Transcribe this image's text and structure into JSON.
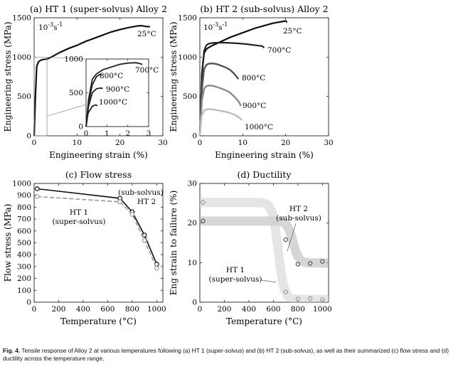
{
  "caption": {
    "label": "Fig. 4.",
    "text": "Tensile response of Alloy 2 at various temperatures following (a) HT 1 (super-solvus) and (b) HT 2 (sub-solvus), as well as their summarized (c) flow stress and (d) ductility across the temperature range."
  },
  "chart_data": [
    {
      "panel": "a",
      "type": "line",
      "title": "(a) HT 1 (super-solvus) Alloy 2",
      "xlabel": "Engineering strain (%)",
      "ylabel": "Engineering stress (MPa)",
      "xlim": [
        0,
        30
      ],
      "ylim": [
        0,
        1500
      ],
      "xticks": [
        0,
        10,
        20,
        30
      ],
      "yticks": [
        0,
        500,
        1000,
        1500
      ],
      "strain_rate_label": "10-3s-1",
      "series": [
        {
          "name": "25°C",
          "points": [
            [
              0,
              0
            ],
            [
              0.3,
              500
            ],
            [
              0.6,
              880
            ],
            [
              1,
              940
            ],
            [
              1.5,
              960
            ],
            [
              2,
              970
            ],
            [
              3,
              975
            ],
            [
              4,
              1000
            ],
            [
              6,
              1060
            ],
            [
              8,
              1110
            ],
            [
              10,
              1150
            ],
            [
              12,
              1200
            ],
            [
              14,
              1240
            ],
            [
              16,
              1280
            ],
            [
              18,
              1320
            ],
            [
              20,
              1350
            ],
            [
              22,
              1375
            ],
            [
              24,
              1395
            ],
            [
              25,
              1400
            ],
            [
              26,
              1390
            ],
            [
              27,
              1385
            ]
          ]
        }
      ],
      "inset": {
        "xlim": [
          0,
          3
        ],
        "ylim": [
          0,
          1000
        ],
        "xticks": [
          0,
          1,
          2,
          3
        ],
        "yticks": [
          0,
          500,
          1000
        ],
        "series": [
          {
            "name": "700°C",
            "points": [
              [
                0,
                0
              ],
              [
                0.12,
                400
              ],
              [
                0.3,
                700
              ],
              [
                0.5,
                780
              ],
              [
                0.8,
                840
              ],
              [
                1.2,
                880
              ],
              [
                1.6,
                920
              ],
              [
                2,
                940
              ],
              [
                2.4,
                945
              ],
              [
                2.6,
                930
              ],
              [
                2.7,
                920
              ]
            ]
          },
          {
            "name": "800°C",
            "points": [
              [
                0,
                0
              ],
              [
                0.12,
                350
              ],
              [
                0.3,
                620
              ],
              [
                0.5,
                740
              ],
              [
                0.65,
                770
              ],
              [
                0.75,
                760
              ]
            ]
          },
          {
            "name": "900°C",
            "points": [
              [
                0,
                0
              ],
              [
                0.12,
                300
              ],
              [
                0.3,
                500
              ],
              [
                0.5,
                560
              ],
              [
                0.7,
                570
              ],
              [
                0.8,
                565
              ]
            ]
          },
          {
            "name": "1000°C",
            "points": [
              [
                0,
                0
              ],
              [
                0.1,
                200
              ],
              [
                0.3,
                300
              ],
              [
                0.45,
                320
              ],
              [
                0.55,
                310
              ]
            ]
          }
        ]
      }
    },
    {
      "panel": "b",
      "type": "line",
      "title": "(b) HT 2 (sub-solvus) Alloy 2",
      "xlabel": "Engineering strain (%)",
      "ylabel": "Engineering stress (MPa)",
      "xlim": [
        0,
        30
      ],
      "ylim": [
        0,
        1500
      ],
      "xticks": [
        0,
        10,
        20,
        30
      ],
      "yticks": [
        0,
        500,
        1000,
        1500
      ],
      "strain_rate_label": "10-3s-1",
      "series": [
        {
          "name": "25°C",
          "points": [
            [
              0,
              0
            ],
            [
              0.5,
              800
            ],
            [
              1,
              1050
            ],
            [
              1.5,
              1100
            ],
            [
              2,
              1120
            ],
            [
              3,
              1150
            ],
            [
              5,
              1200
            ],
            [
              7,
              1250
            ],
            [
              9,
              1290
            ],
            [
              11,
              1330
            ],
            [
              13,
              1370
            ],
            [
              15,
              1400
            ],
            [
              17,
              1430
            ],
            [
              19,
              1450
            ],
            [
              20,
              1460
            ],
            [
              20.3,
              1440
            ]
          ]
        },
        {
          "name": "700°C",
          "points": [
            [
              0,
              0
            ],
            [
              0.5,
              800
            ],
            [
              1,
              1080
            ],
            [
              1.5,
              1150
            ],
            [
              2,
              1170
            ],
            [
              3,
              1180
            ],
            [
              5,
              1185
            ],
            [
              7,
              1180
            ],
            [
              9,
              1175
            ],
            [
              11,
              1165
            ],
            [
              13,
              1150
            ],
            [
              14.5,
              1140
            ],
            [
              15,
              1120
            ]
          ]
        },
        {
          "name": "800°C",
          "points": [
            [
              0,
              0
            ],
            [
              0.5,
              600
            ],
            [
              1,
              850
            ],
            [
              1.5,
              900
            ],
            [
              2,
              915
            ],
            [
              3,
              920
            ],
            [
              4,
              910
            ],
            [
              5,
              890
            ],
            [
              6,
              870
            ],
            [
              7,
              840
            ],
            [
              8,
              790
            ],
            [
              9,
              720
            ]
          ]
        },
        {
          "name": "900°C",
          "points": [
            [
              0,
              0
            ],
            [
              0.5,
              450
            ],
            [
              1,
              600
            ],
            [
              1.5,
              630
            ],
            [
              2,
              640
            ],
            [
              3,
              635
            ],
            [
              4,
              620
            ],
            [
              5,
              600
            ],
            [
              6,
              580
            ],
            [
              7,
              550
            ],
            [
              8,
              500
            ],
            [
              9,
              440
            ],
            [
              9.6,
              380
            ]
          ]
        },
        {
          "name": "1000°C",
          "points": [
            [
              0,
              0
            ],
            [
              0.4,
              250
            ],
            [
              1,
              320
            ],
            [
              1.5,
              335
            ],
            [
              2,
              340
            ],
            [
              3,
              335
            ],
            [
              4,
              325
            ],
            [
              5,
              315
            ],
            [
              6,
              305
            ],
            [
              7,
              290
            ],
            [
              8,
              270
            ],
            [
              9,
              240
            ],
            [
              9.8,
              200
            ]
          ]
        }
      ]
    },
    {
      "panel": "c",
      "type": "line",
      "title": "(c) Flow stress",
      "xlabel": "Temperature (°C)",
      "ylabel": "Flow stress (MPa)",
      "xlim": [
        0,
        1050
      ],
      "ylim": [
        0,
        1000
      ],
      "xticks": [
        0,
        200,
        400,
        600,
        800,
        1000
      ],
      "yticks": [
        0,
        100,
        200,
        300,
        400,
        500,
        600,
        700,
        800,
        900,
        1000
      ],
      "series": [
        {
          "label_lines": [
            "(sub-solvus)",
            "HT 2"
          ],
          "x": [
            25,
            700,
            800,
            900,
            1000
          ],
          "y": [
            955,
            875,
            760,
            565,
            320
          ]
        },
        {
          "label_lines": [
            "HT 1",
            "(super-solvus)"
          ],
          "x": [
            25,
            700,
            800,
            900,
            1000
          ],
          "y": [
            890,
            845,
            740,
            520,
            285
          ]
        }
      ]
    },
    {
      "panel": "d",
      "type": "scatter",
      "title": "(d) Ductility",
      "xlabel": "Temperature (°C)",
      "ylabel": "Eng strain to failure (%)",
      "xlim": [
        0,
        1050
      ],
      "ylim": [
        0,
        30
      ],
      "xticks": [
        0,
        200,
        400,
        600,
        800,
        1000
      ],
      "yticks": [
        0,
        10,
        20,
        30
      ],
      "series": [
        {
          "label_lines": [
            "HT 2",
            "(sub-solvus)"
          ],
          "x": [
            25,
            700,
            800,
            900,
            1000
          ],
          "y": [
            20.5,
            15.8,
            9.6,
            9.8,
            10.3
          ]
        },
        {
          "label_lines": [
            "HT 1",
            "(super-solvus)"
          ],
          "x": [
            25,
            700,
            800,
            900,
            1000
          ],
          "y": [
            25.2,
            2.6,
            0.8,
            0.9,
            0.6
          ]
        }
      ]
    }
  ]
}
